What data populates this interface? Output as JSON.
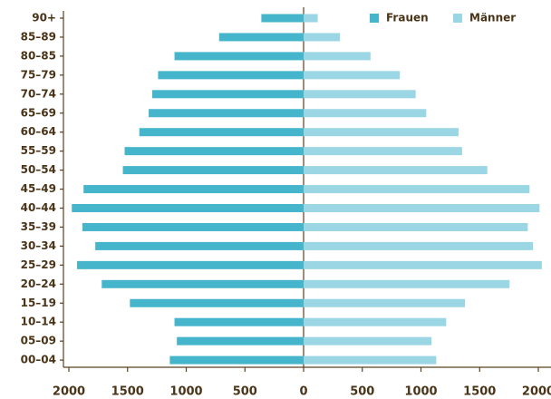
{
  "chart_data": {
    "type": "pyramid",
    "categories": [
      "90+",
      "85–89",
      "80–85",
      "75–79",
      "70–74",
      "65–69",
      "60–64",
      "55–59",
      "50–54",
      "45–49",
      "40–44",
      "35–39",
      "30–34",
      "25–29",
      "20–24",
      "15–19",
      "10–14",
      "05–09",
      "00–04"
    ],
    "series": [
      {
        "name": "Frauen",
        "color": "#45b5cc",
        "side": "left",
        "values": [
          360,
          720,
          1100,
          1240,
          1290,
          1320,
          1400,
          1525,
          1540,
          1875,
          1975,
          1885,
          1775,
          1930,
          1720,
          1480,
          1100,
          1080,
          1140
        ]
      },
      {
        "name": "Männer",
        "color": "#9ad6e4",
        "side": "right",
        "values": [
          120,
          310,
          570,
          820,
          955,
          1045,
          1320,
          1350,
          1565,
          1925,
          2010,
          1910,
          1955,
          2030,
          1755,
          1375,
          1215,
          1090,
          1130
        ]
      }
    ],
    "xlim": [
      -2000,
      2050
    ],
    "xticks": [
      {
        "value": -2000,
        "label": "2000"
      },
      {
        "value": -1500,
        "label": "1500"
      },
      {
        "value": -1000,
        "label": "1000"
      },
      {
        "value": -500,
        "label": "500"
      },
      0,
      500,
      1000,
      1500,
      2000
    ],
    "legend": "top-right"
  }
}
